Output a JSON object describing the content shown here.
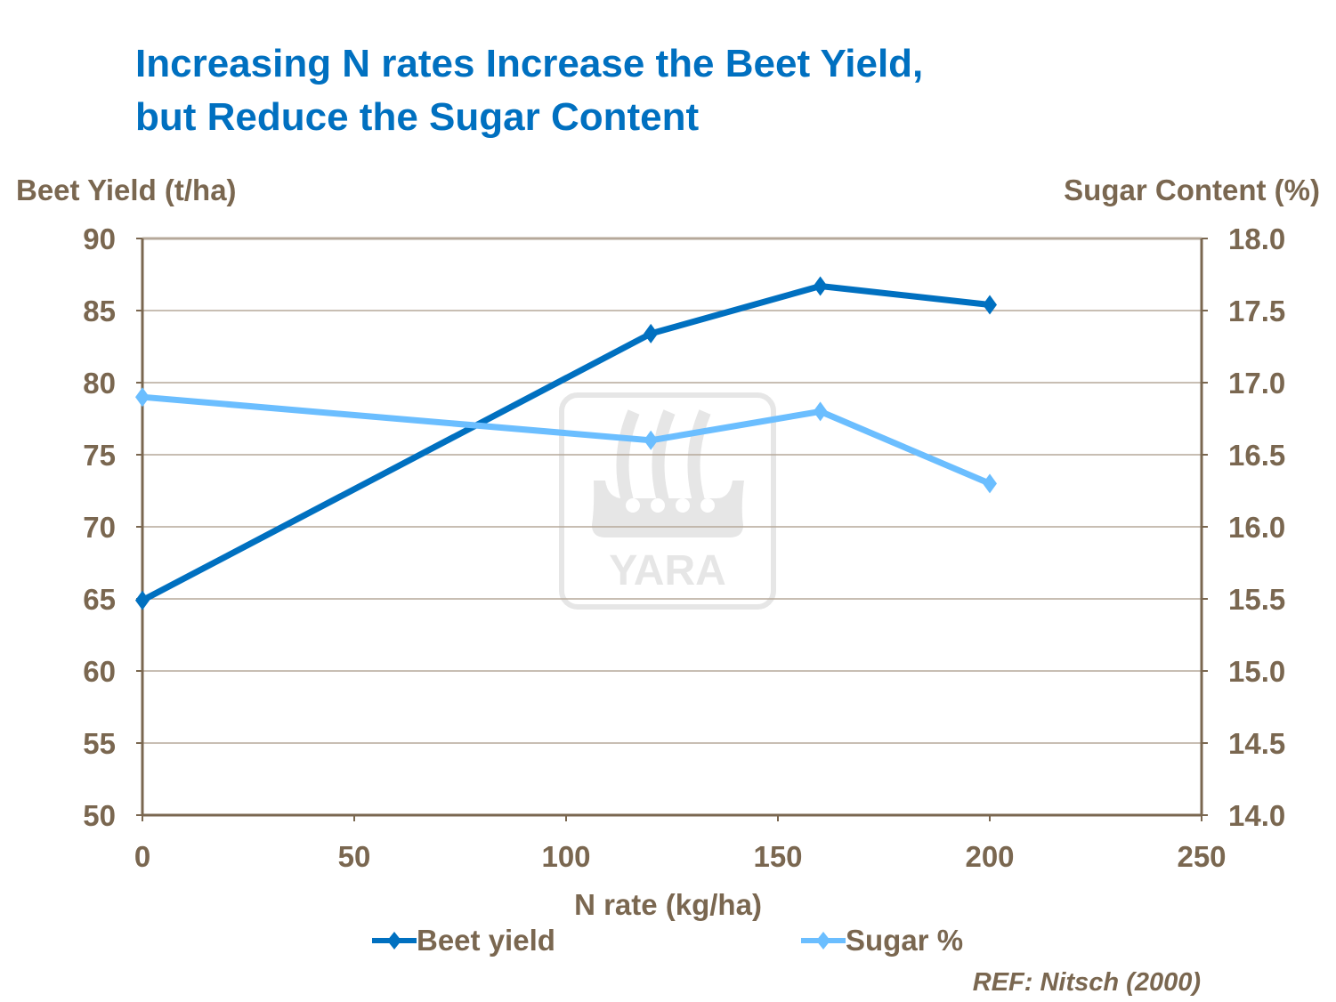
{
  "title_lines": [
    "Increasing N rates Increase the Beet Yield,",
    "but Reduce the Sugar Content"
  ],
  "reference": "REF: Nitsch (2000)",
  "watermark": "YARA",
  "chart_data": {
    "type": "line",
    "title": "Increasing N rates Increase the Beet Yield, but Reduce the Sugar Content",
    "xlabel": "N rate (kg/ha)",
    "ylabel_left": "Beet Yield (t/ha)",
    "ylabel_right": "Sugar Content (%)",
    "xlim": [
      0,
      250
    ],
    "ylim_left": [
      50,
      90
    ],
    "ylim_right": [
      14.0,
      18.0
    ],
    "x_ticks": [
      "0",
      "50",
      "100",
      "150",
      "200",
      "250"
    ],
    "y_ticks_left": [
      "50",
      "55",
      "60",
      "65",
      "70",
      "75",
      "80",
      "85",
      "90"
    ],
    "y_ticks_right": [
      "14.0",
      "14.5",
      "15.0",
      "15.5",
      "16.0",
      "16.5",
      "17.0",
      "17.5",
      "18.0"
    ],
    "grid": "horizontal",
    "legend_position": "bottom",
    "series": [
      {
        "name": "Beet yield",
        "axis": "left",
        "color": "#0070C0",
        "x": [
          0,
          120,
          160,
          200
        ],
        "y": [
          64.9,
          83.4,
          86.7,
          85.4
        ]
      },
      {
        "name": "Sugar %",
        "axis": "right",
        "color": "#6BBEFF",
        "x": [
          0,
          120,
          160,
          200
        ],
        "y": [
          16.9,
          16.6,
          16.8,
          16.3
        ]
      }
    ]
  }
}
